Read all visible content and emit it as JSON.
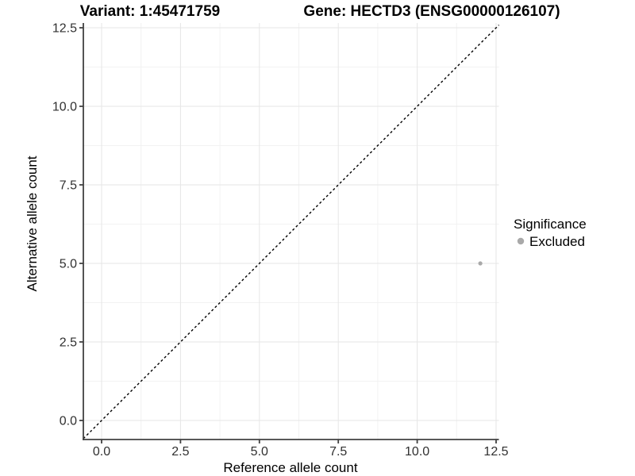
{
  "chart_data": {
    "type": "scatter",
    "title_left": "Variant: 1:45471759",
    "title_right": "Gene: HECTD3 (ENSG00000126107)",
    "xlabel": "Reference allele count",
    "ylabel": "Alternative allele count",
    "xticks": [
      0,
      2.5,
      5,
      7.5,
      10,
      12.5
    ],
    "yticks": [
      0,
      2.5,
      5,
      7.5,
      10,
      12.5
    ],
    "xtick_labels": [
      "0.0",
      "2.5",
      "5.0",
      "7.5",
      "10.0",
      "12.5"
    ],
    "ytick_labels": [
      "0.0",
      "2.5",
      "5.0",
      "7.5",
      "10.0",
      "12.5"
    ],
    "xlim": [
      -0.58,
      12.6
    ],
    "ylim": [
      -0.6,
      12.65
    ],
    "grid": "major+minor",
    "reference_line": {
      "slope": 1,
      "intercept": 0,
      "style": "dashed",
      "color": "#000000"
    },
    "series": [
      {
        "name": "Excluded",
        "color": "#a9a9a9",
        "points": [
          {
            "x": 12,
            "y": 5
          }
        ]
      }
    ],
    "legend": {
      "title": "Significance",
      "position": "right",
      "items": [
        {
          "label": "Excluded",
          "color": "#a9a9a9"
        }
      ]
    },
    "colors": {
      "axis_line": "#404040",
      "tick_text": "#303030",
      "grid_major": "#e6e6e6",
      "grid_minor": "#f2f2f2",
      "background": "#ffffff"
    }
  }
}
